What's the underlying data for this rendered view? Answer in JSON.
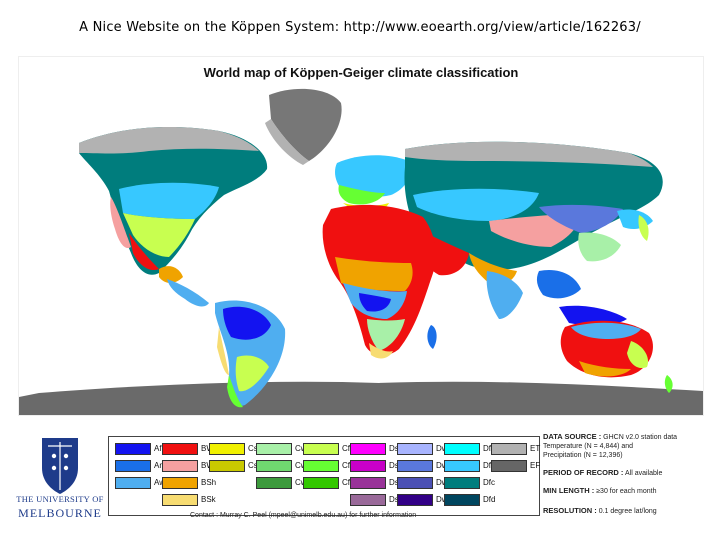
{
  "slide": {
    "title": "A Nice Website on the Köppen System: http://www.eoearth.org/view/article/162263/"
  },
  "map": {
    "title": "World map of Köppen-Geiger climate classification"
  },
  "legend": {
    "items": [
      {
        "code": "Af",
        "color": "#1313f0"
      },
      {
        "code": "Am",
        "color": "#1a6fe8"
      },
      {
        "code": "Aw",
        "color": "#4faef0"
      },
      {
        "code": "BWh",
        "color": "#f01010"
      },
      {
        "code": "BWk",
        "color": "#f5a0a0"
      },
      {
        "code": "BSh",
        "color": "#f0a300"
      },
      {
        "code": "BSk",
        "color": "#f7dc72"
      },
      {
        "code": "Csa",
        "color": "#f0f000"
      },
      {
        "code": "Csb",
        "color": "#c8c800"
      },
      {
        "code": "Cwa",
        "color": "#a8f0a8"
      },
      {
        "code": "Cwb",
        "color": "#70d870"
      },
      {
        "code": "Cwc",
        "color": "#3c9a3c"
      },
      {
        "code": "Cfa",
        "color": "#c8ff50"
      },
      {
        "code": "Cfb",
        "color": "#66ff33"
      },
      {
        "code": "Cfc",
        "color": "#33c800"
      },
      {
        "code": "Dsa",
        "color": "#ff00ff"
      },
      {
        "code": "Dsb",
        "color": "#c800c8"
      },
      {
        "code": "Dsc",
        "color": "#993399"
      },
      {
        "code": "Dsd",
        "color": "#9a6a9a"
      },
      {
        "code": "Dwa",
        "color": "#a8b4ff"
      },
      {
        "code": "Dwb",
        "color": "#5a78dc"
      },
      {
        "code": "Dwc",
        "color": "#4b50b4"
      },
      {
        "code": "Dwd",
        "color": "#320087"
      },
      {
        "code": "Dfa",
        "color": "#00ffff"
      },
      {
        "code": "Dfb",
        "color": "#37c8ff"
      },
      {
        "code": "Dfc",
        "color": "#007d7d"
      },
      {
        "code": "Dfd",
        "color": "#00465f"
      },
      {
        "code": "ET",
        "color": "#b2b2b2"
      },
      {
        "code": "EF",
        "color": "#666666"
      }
    ],
    "contact": "Contact : Murray C. Peel (mpeel@unimelb.edu.au) for further information"
  },
  "info": {
    "data_source_label": "DATA SOURCE :",
    "data_source_text": "GHCN v2.0 station data",
    "data_source_line2": "Temperature (N = 4,844) and",
    "data_source_line3": "Precipitation (N = 12,396)",
    "period_label": "PERIOD OF RECORD :",
    "period_text": "All available",
    "min_length_label": "MIN LENGTH :",
    "min_length_text": "≥30 for each month",
    "resolution_label": "RESOLUTION :",
    "resolution_text": "0.1 degree lat/long"
  },
  "logo": {
    "line1": "THE UNIVERSITY OF",
    "line2": "MELBOURNE"
  }
}
